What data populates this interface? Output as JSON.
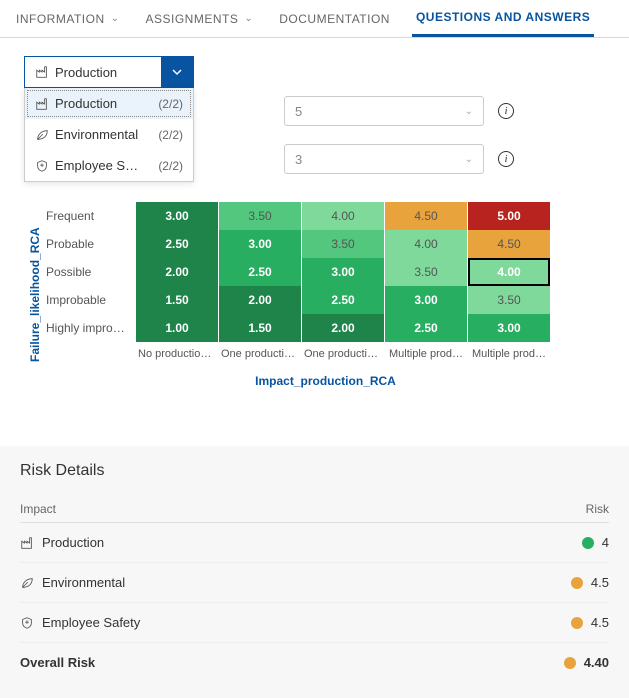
{
  "tabs": [
    {
      "label": "INFORMATION",
      "chevron": true,
      "active": false
    },
    {
      "label": "ASSIGNMENTS",
      "chevron": true,
      "active": false
    },
    {
      "label": "DOCUMENTATION",
      "chevron": false,
      "active": false
    },
    {
      "label": "QUESTIONS AND ANSWERS",
      "chevron": false,
      "active": true
    }
  ],
  "dropdown": {
    "selected": "Production",
    "items": [
      {
        "icon": "factory",
        "label": "Production",
        "count": "(2/2)"
      },
      {
        "icon": "leaf",
        "label": "Environmental",
        "count": "(2/2)"
      },
      {
        "icon": "shield",
        "label": "Employee S…",
        "count": "(2/2)"
      }
    ]
  },
  "selects": [
    {
      "value": "5"
    },
    {
      "value": "3"
    }
  ],
  "matrix": {
    "y_axis_label": "Failure_likelihood_RCA",
    "x_axis_label": "Impact_production_RCA",
    "row_labels": [
      "Frequent",
      "Probable",
      "Possible",
      "Improbable",
      "Highly improb…"
    ],
    "col_labels": [
      "No production…",
      "One productio…",
      "One productio…",
      "Multiple prod…",
      "Multiple prod…"
    ],
    "colors": {
      "dark_green": "#1e8449",
      "green": "#27ae60",
      "light_green": "#52c77d",
      "pale_green": "#7ed99a",
      "orange": "#e8a33d",
      "red": "#b8231f"
    },
    "cells": [
      [
        {
          "v": "3.00",
          "c": "dark_green",
          "b": true
        },
        {
          "v": "3.50",
          "c": "light_green",
          "b": false
        },
        {
          "v": "4.00",
          "c": "pale_green",
          "b": false
        },
        {
          "v": "4.50",
          "c": "orange",
          "b": false
        },
        {
          "v": "5.00",
          "c": "red",
          "b": true
        }
      ],
      [
        {
          "v": "2.50",
          "c": "dark_green",
          "b": true
        },
        {
          "v": "3.00",
          "c": "green",
          "b": true
        },
        {
          "v": "3.50",
          "c": "light_green",
          "b": false
        },
        {
          "v": "4.00",
          "c": "pale_green",
          "b": false
        },
        {
          "v": "4.50",
          "c": "orange",
          "b": false
        }
      ],
      [
        {
          "v": "2.00",
          "c": "dark_green",
          "b": true
        },
        {
          "v": "2.50",
          "c": "green",
          "b": true
        },
        {
          "v": "3.00",
          "c": "green",
          "b": true
        },
        {
          "v": "3.50",
          "c": "pale_green",
          "b": false
        },
        {
          "v": "4.00",
          "c": "pale_green",
          "b": true,
          "sel": true
        }
      ],
      [
        {
          "v": "1.50",
          "c": "dark_green",
          "b": true
        },
        {
          "v": "2.00",
          "c": "dark_green",
          "b": true
        },
        {
          "v": "2.50",
          "c": "green",
          "b": true
        },
        {
          "v": "3.00",
          "c": "green",
          "b": true
        },
        {
          "v": "3.50",
          "c": "pale_green",
          "b": false
        }
      ],
      [
        {
          "v": "1.00",
          "c": "dark_green",
          "b": true
        },
        {
          "v": "1.50",
          "c": "dark_green",
          "b": true
        },
        {
          "v": "2.00",
          "c": "dark_green",
          "b": true
        },
        {
          "v": "2.50",
          "c": "green",
          "b": true
        },
        {
          "v": "3.00",
          "c": "green",
          "b": true
        }
      ]
    ]
  },
  "risk_details": {
    "title": "Risk Details",
    "head_impact": "Impact",
    "head_risk": "Risk",
    "dot_colors": {
      "green": "#27ae60",
      "orange": "#e8a33d"
    },
    "rows": [
      {
        "icon": "factory",
        "label": "Production",
        "dot": "green",
        "value": "4"
      },
      {
        "icon": "leaf",
        "label": "Environmental",
        "dot": "orange",
        "value": "4.5"
      },
      {
        "icon": "shield",
        "label": "Employee Safety",
        "dot": "orange",
        "value": "4.5"
      }
    ],
    "overall": {
      "label": "Overall Risk",
      "dot": "orange",
      "value": "4.40"
    }
  }
}
